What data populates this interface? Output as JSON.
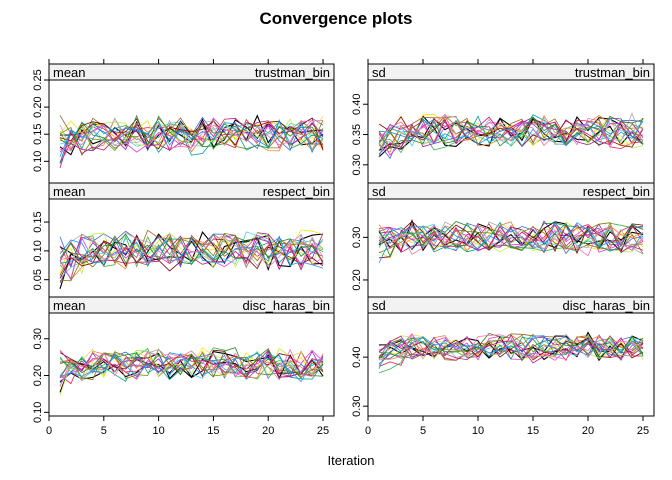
{
  "figure": {
    "title": "Convergence plots",
    "xlabel": "Iteration",
    "x_ticks": [
      0,
      5,
      10,
      15,
      20,
      25
    ]
  },
  "chart_data": {
    "type": "line",
    "title": "Convergence plots",
    "xlabel": "Iteration",
    "xlim": [
      0,
      26
    ],
    "iterations": [
      1,
      25
    ],
    "grid": false,
    "legend": "none",
    "panels": [
      {
        "stat": "mean",
        "variable": "trustman_bin",
        "ylim": [
          0.06,
          0.25
        ],
        "yticks": [
          "0.10",
          "0.15",
          "0.20",
          "0.25"
        ],
        "center": 0.15,
        "spread": 0.03,
        "chains": 20
      },
      {
        "stat": "sd",
        "variable": "trustman_bin",
        "ylim": [
          0.27,
          0.44
        ],
        "yticks": [
          "0.30",
          "0.35",
          "0.40"
        ],
        "center": 0.355,
        "spread": 0.025,
        "chains": 20
      },
      {
        "stat": "mean",
        "variable": "respect_bin",
        "ylim": [
          0.02,
          0.19
        ],
        "yticks": [
          "0.05",
          "0.10",
          "0.15"
        ],
        "center": 0.1,
        "spread": 0.03,
        "chains": 20
      },
      {
        "stat": "sd",
        "variable": "respect_bin",
        "ylim": [
          0.16,
          0.39
        ],
        "yticks": [
          "0.20",
          "0.30"
        ],
        "center": 0.3,
        "spread": 0.035,
        "chains": 20
      },
      {
        "stat": "mean",
        "variable": "disc_haras_bin",
        "ylim": [
          0.09,
          0.37
        ],
        "yticks": [
          "0.10",
          "0.20",
          "0.30"
        ],
        "center": 0.23,
        "spread": 0.04,
        "chains": 20
      },
      {
        "stat": "sd",
        "variable": "disc_haras_bin",
        "ylim": [
          0.28,
          0.49
        ],
        "yticks": [
          "0.30",
          "0.40"
        ],
        "center": 0.42,
        "spread": 0.025,
        "chains": 20
      }
    ],
    "colors": [
      "#000000",
      "#000000",
      "#e6194b",
      "#3cb44b",
      "#ffe119",
      "#4363d8",
      "#f58231",
      "#911eb4",
      "#42d4f4",
      "#f032e6",
      "#bfef45",
      "#9a6324",
      "#800000",
      "#808000",
      "#00a0a0",
      "#a9a9a9",
      "#c71585",
      "#228b22",
      "#1e90ff",
      "#ff69b4"
    ]
  }
}
